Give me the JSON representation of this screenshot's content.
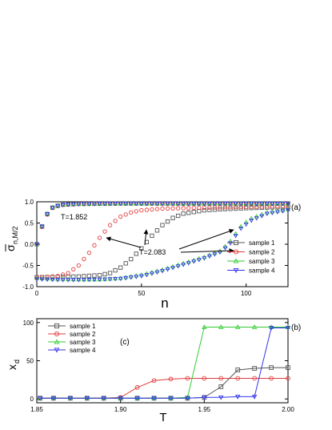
{
  "chart_data": [
    {
      "type": "scatter",
      "panel_label": "(a)",
      "xlabel": "n",
      "ylabel_main": "σ",
      "ylabel_sub": "n,M/2",
      "xlim": [
        0,
        120
      ],
      "ylim": [
        -1.0,
        1.0
      ],
      "xticks": [
        0,
        50,
        100
      ],
      "yticks": [
        -1.0,
        -0.5,
        0.0,
        0.5,
        1.0
      ],
      "legend_position": "bottom-right",
      "annotations": [
        "T=1.852",
        "T=2.083"
      ],
      "series": [
        {
          "name": "sample 1",
          "color": "#555555",
          "marker": "square",
          "points_T1852": [
            [
              0,
              0.0
            ],
            [
              2,
              0.35
            ],
            [
              4,
              0.62
            ],
            [
              6,
              0.8
            ],
            [
              8,
              0.88
            ],
            [
              12,
              0.93
            ],
            [
              20,
              0.95
            ],
            [
              40,
              0.96
            ],
            [
              80,
              0.96
            ],
            [
              120,
              0.96
            ]
          ],
          "points_T2083": [
            [
              0,
              -0.78
            ],
            [
              10,
              -0.77
            ],
            [
              20,
              -0.76
            ],
            [
              30,
              -0.73
            ],
            [
              35,
              -0.68
            ],
            [
              40,
              -0.55
            ],
            [
              45,
              -0.35
            ],
            [
              50,
              -0.1
            ],
            [
              55,
              0.2
            ],
            [
              60,
              0.45
            ],
            [
              65,
              0.62
            ],
            [
              70,
              0.72
            ],
            [
              80,
              0.8
            ],
            [
              90,
              0.83
            ],
            [
              100,
              0.85
            ],
            [
              120,
              0.88
            ]
          ]
        },
        {
          "name": "sample 2",
          "color": "#e23b3b",
          "marker": "circle",
          "points_T1852": [
            [
              0,
              0.0
            ],
            [
              2,
              0.34
            ],
            [
              4,
              0.61
            ],
            [
              6,
              0.79
            ],
            [
              8,
              0.88
            ],
            [
              12,
              0.93
            ],
            [
              20,
              0.95
            ],
            [
              40,
              0.96
            ],
            [
              80,
              0.96
            ],
            [
              120,
              0.96
            ]
          ],
          "points_T2083": [
            [
              0,
              -0.78
            ],
            [
              5,
              -0.77
            ],
            [
              10,
              -0.75
            ],
            [
              15,
              -0.68
            ],
            [
              20,
              -0.5
            ],
            [
              25,
              -0.2
            ],
            [
              30,
              0.15
            ],
            [
              35,
              0.45
            ],
            [
              40,
              0.65
            ],
            [
              45,
              0.75
            ],
            [
              50,
              0.8
            ],
            [
              60,
              0.84
            ],
            [
              80,
              0.86
            ],
            [
              100,
              0.88
            ],
            [
              120,
              0.9
            ]
          ]
        },
        {
          "name": "sample 3",
          "color": "#33cc33",
          "marker": "triangle-up",
          "points_T1852": [
            [
              0,
              0.0
            ],
            [
              2,
              0.36
            ],
            [
              4,
              0.63
            ],
            [
              6,
              0.81
            ],
            [
              8,
              0.89
            ],
            [
              12,
              0.94
            ],
            [
              20,
              0.95
            ],
            [
              40,
              0.96
            ],
            [
              80,
              0.96
            ],
            [
              120,
              0.96
            ]
          ],
          "points_T2083": [
            [
              0,
              -0.8
            ],
            [
              10,
              -0.82
            ],
            [
              20,
              -0.83
            ],
            [
              30,
              -0.83
            ],
            [
              40,
              -0.8
            ],
            [
              50,
              -0.72
            ],
            [
              60,
              -0.6
            ],
            [
              70,
              -0.45
            ],
            [
              80,
              -0.3
            ],
            [
              88,
              -0.15
            ],
            [
              93,
              0.1
            ],
            [
              97,
              0.4
            ],
            [
              102,
              0.6
            ],
            [
              110,
              0.75
            ],
            [
              120,
              0.82
            ]
          ]
        },
        {
          "name": "sample 4",
          "color": "#3333ee",
          "marker": "triangle-down",
          "points_T1852": [
            [
              0,
              0.0
            ],
            [
              2,
              0.35
            ],
            [
              4,
              0.62
            ],
            [
              6,
              0.8
            ],
            [
              8,
              0.88
            ],
            [
              12,
              0.93
            ],
            [
              20,
              0.95
            ],
            [
              40,
              0.96
            ],
            [
              80,
              0.96
            ],
            [
              120,
              0.96
            ]
          ],
          "points_T2083": [
            [
              0,
              -0.82
            ],
            [
              10,
              -0.84
            ],
            [
              20,
              -0.84
            ],
            [
              30,
              -0.83
            ],
            [
              40,
              -0.81
            ],
            [
              50,
              -0.75
            ],
            [
              60,
              -0.63
            ],
            [
              70,
              -0.48
            ],
            [
              80,
              -0.33
            ],
            [
              88,
              -0.18
            ],
            [
              93,
              0.05
            ],
            [
              97,
              0.35
            ],
            [
              102,
              0.55
            ],
            [
              110,
              0.72
            ],
            [
              120,
              0.8
            ]
          ]
        }
      ]
    },
    {
      "type": "line",
      "panel_label": "(b)",
      "inner_label": "(c)",
      "xlabel": "T",
      "ylabel_main": "x",
      "ylabel_sub": "d",
      "xlim": [
        1.85,
        2.0
      ],
      "ylim": [
        -5,
        105
      ],
      "xticks": [
        1.85,
        1.9,
        1.95,
        2.0
      ],
      "xtick_labels": [
        "1.85",
        "1.90",
        "1.95",
        "2.00"
      ],
      "yticks": [
        0,
        50,
        100
      ],
      "legend_position": "top-left",
      "x": [
        1.852,
        1.86,
        1.87,
        1.88,
        1.89,
        1.9,
        1.91,
        1.92,
        1.93,
        1.94,
        1.95,
        1.96,
        1.97,
        1.98,
        1.99,
        2.0
      ],
      "series": [
        {
          "name": "sample 1",
          "color": "#555555",
          "marker": "square",
          "values": [
            1,
            1,
            1,
            1,
            1,
            1,
            1,
            1,
            1,
            1,
            2,
            16,
            38,
            40,
            41,
            41
          ]
        },
        {
          "name": "sample 2",
          "color": "#e23b3b",
          "marker": "circle",
          "values": [
            1,
            1,
            1,
            1,
            1,
            2,
            15,
            24,
            26,
            27,
            27,
            27,
            27,
            27,
            27,
            27
          ]
        },
        {
          "name": "sample 3",
          "color": "#33cc33",
          "marker": "triangle-up",
          "values": [
            1,
            1,
            1,
            1,
            1,
            1,
            1,
            1,
            1,
            2,
            94,
            94,
            94,
            94,
            94,
            94
          ]
        },
        {
          "name": "sample 4",
          "color": "#3333ee",
          "marker": "triangle-down",
          "values": [
            1,
            1,
            1,
            1,
            1,
            1,
            1,
            1,
            1,
            1,
            2,
            2,
            3,
            3,
            93,
            93
          ]
        }
      ]
    }
  ]
}
